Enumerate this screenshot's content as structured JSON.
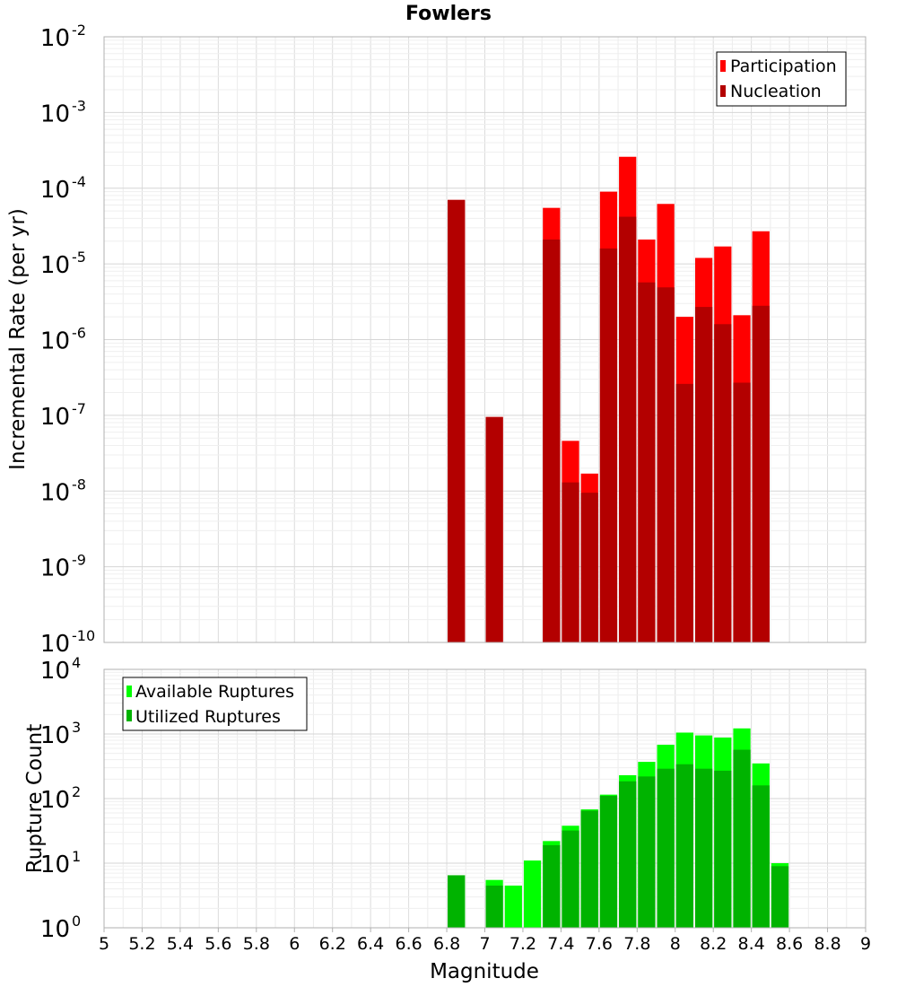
{
  "chart_data": [
    {
      "type": "bar",
      "title": "Fowlers",
      "ylabel": "Incremental Rate (per yr)",
      "xlabel": "",
      "yscale": "log",
      "ylim_exponents": [
        -10,
        -2
      ],
      "xlim": [
        5,
        9
      ],
      "bin_width": 0.1,
      "grid": true,
      "legend_placement": "top-right",
      "overlay": true,
      "series": [
        {
          "name": "Participation",
          "color": "#ff0000",
          "points": [
            {
              "x": 6.85,
              "y": 7e-05
            },
            {
              "x": 7.05,
              "y": 9.5e-08
            },
            {
              "x": 7.35,
              "y": 5.5e-05
            },
            {
              "x": 7.45,
              "y": 4.6e-08
            },
            {
              "x": 7.55,
              "y": 1.7e-08
            },
            {
              "x": 7.65,
              "y": 9e-05
            },
            {
              "x": 7.75,
              "y": 0.00026
            },
            {
              "x": 7.85,
              "y": 2.1e-05
            },
            {
              "x": 7.95,
              "y": 6.2e-05
            },
            {
              "x": 8.05,
              "y": 2e-06
            },
            {
              "x": 8.15,
              "y": 1.2e-05
            },
            {
              "x": 8.25,
              "y": 1.7e-05
            },
            {
              "x": 8.35,
              "y": 2.1e-06
            },
            {
              "x": 8.45,
              "y": 2.7e-05
            }
          ]
        },
        {
          "name": "Nucleation",
          "color": "#b30000",
          "points": [
            {
              "x": 6.85,
              "y": 7e-05
            },
            {
              "x": 7.05,
              "y": 9.5e-08
            },
            {
              "x": 7.35,
              "y": 2.1e-05
            },
            {
              "x": 7.45,
              "y": 1.3e-08
            },
            {
              "x": 7.55,
              "y": 9.5e-09
            },
            {
              "x": 7.65,
              "y": 1.6e-05
            },
            {
              "x": 7.75,
              "y": 4.2e-05
            },
            {
              "x": 7.85,
              "y": 5.7e-06
            },
            {
              "x": 7.95,
              "y": 4.9e-06
            },
            {
              "x": 8.05,
              "y": 2.6e-07
            },
            {
              "x": 8.15,
              "y": 2.7e-06
            },
            {
              "x": 8.25,
              "y": 1.6e-06
            },
            {
              "x": 8.35,
              "y": 2.7e-07
            },
            {
              "x": 8.45,
              "y": 2.8e-06
            }
          ]
        }
      ]
    },
    {
      "type": "bar",
      "title": "",
      "ylabel": "Rupture Count",
      "xlabel": "Magnitude",
      "yscale": "log",
      "ylim_exponents": [
        0,
        4
      ],
      "xlim": [
        5,
        9
      ],
      "bin_width": 0.1,
      "grid": true,
      "legend_placement": "top-left",
      "overlay": true,
      "series": [
        {
          "name": "Available Ruptures",
          "color": "#00ff00",
          "points": [
            {
              "x": 6.85,
              "y": 6.5
            },
            {
              "x": 7.05,
              "y": 5.5
            },
            {
              "x": 7.15,
              "y": 4.5
            },
            {
              "x": 7.25,
              "y": 11
            },
            {
              "x": 7.35,
              "y": 22
            },
            {
              "x": 7.45,
              "y": 38
            },
            {
              "x": 7.55,
              "y": 68
            },
            {
              "x": 7.65,
              "y": 115
            },
            {
              "x": 7.75,
              "y": 230
            },
            {
              "x": 7.85,
              "y": 370
            },
            {
              "x": 7.95,
              "y": 680
            },
            {
              "x": 8.05,
              "y": 1050
            },
            {
              "x": 8.15,
              "y": 950
            },
            {
              "x": 8.25,
              "y": 880
            },
            {
              "x": 8.35,
              "y": 1220
            },
            {
              "x": 8.45,
              "y": 350
            },
            {
              "x": 8.55,
              "y": 10
            }
          ]
        },
        {
          "name": "Utilized Ruptures",
          "color": "#00b300",
          "points": [
            {
              "x": 6.85,
              "y": 6.5
            },
            {
              "x": 7.05,
              "y": 4.5
            },
            {
              "x": 7.15,
              "y": 1
            },
            {
              "x": 7.35,
              "y": 19
            },
            {
              "x": 7.45,
              "y": 32
            },
            {
              "x": 7.55,
              "y": 65
            },
            {
              "x": 7.65,
              "y": 110
            },
            {
              "x": 7.75,
              "y": 185
            },
            {
              "x": 7.85,
              "y": 220
            },
            {
              "x": 7.95,
              "y": 290
            },
            {
              "x": 8.05,
              "y": 340
            },
            {
              "x": 8.15,
              "y": 290
            },
            {
              "x": 8.25,
              "y": 270
            },
            {
              "x": 8.35,
              "y": 570
            },
            {
              "x": 8.45,
              "y": 160
            },
            {
              "x": 8.55,
              "y": 9
            }
          ]
        }
      ]
    }
  ],
  "x_tick_labels": [
    "5",
    "5.2",
    "5.4",
    "5.6",
    "5.8",
    "6",
    "6.2",
    "6.4",
    "6.6",
    "6.8",
    "7",
    "7.2",
    "7.4",
    "7.6",
    "7.8",
    "8",
    "8.2",
    "8.4",
    "8.6",
    "8.8",
    "9"
  ]
}
